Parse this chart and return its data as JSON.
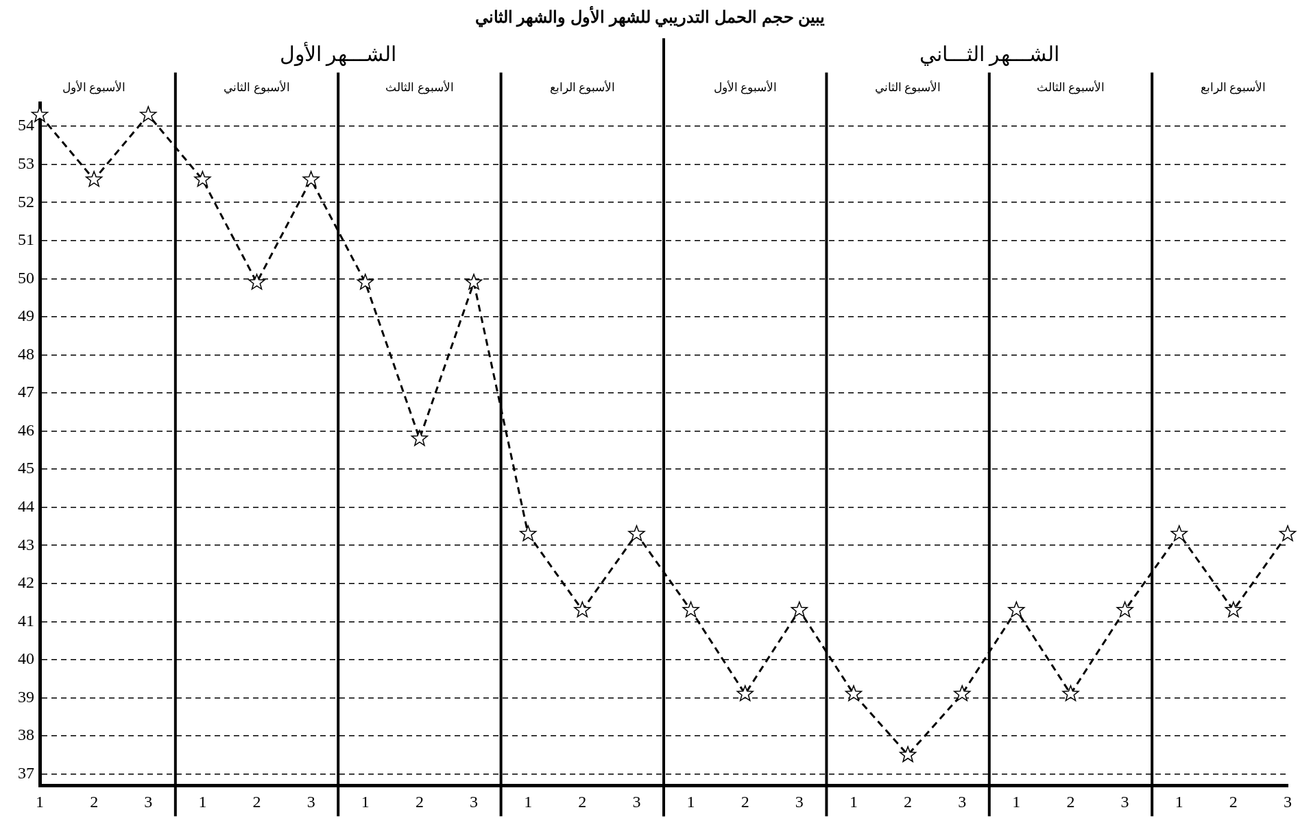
{
  "chart_data": {
    "type": "line",
    "title": "يبين حجم الحمل التدريبي للشهر الأول والشهر الثاني",
    "categories": [
      "1",
      "2",
      "3",
      "1",
      "2",
      "3",
      "1",
      "2",
      "3",
      "1",
      "2",
      "3",
      "1",
      "2",
      "3",
      "1",
      "2",
      "3",
      "1",
      "2",
      "3",
      "1",
      "2",
      "3"
    ],
    "series": [
      {
        "color": "#000000",
        "values": [
          54.3,
          52.6,
          54.3,
          52.6,
          49.9,
          52.6,
          49.9,
          45.8,
          49.9,
          43.3,
          41.3,
          43.3,
          41.3,
          39.1,
          41.3,
          39.1,
          37.5,
          39.1,
          41.3,
          39.1,
          41.3,
          43.3,
          41.3,
          43.3
        ]
      }
    ],
    "ylim": [
      36.7,
      54.6
    ],
    "yticks": [
      37,
      38,
      39,
      40,
      41,
      42,
      43,
      44,
      45,
      46,
      47,
      48,
      49,
      50,
      51,
      52,
      53,
      54
    ],
    "grid": "y",
    "marker": "star",
    "line_style": "dashed",
    "legend": false,
    "annotations": [
      "الشـــهر الأول",
      "الشـــهر الثـــاني",
      "الأسبوع الأول",
      "الأسبوع الثاني",
      "الأسبوع الثالث",
      "الأسبوع الرابع",
      "الأسبوع الأول",
      "الأسبوع الثاني",
      "الأسبوع الثالث",
      "الأسبوع الرابع"
    ]
  }
}
